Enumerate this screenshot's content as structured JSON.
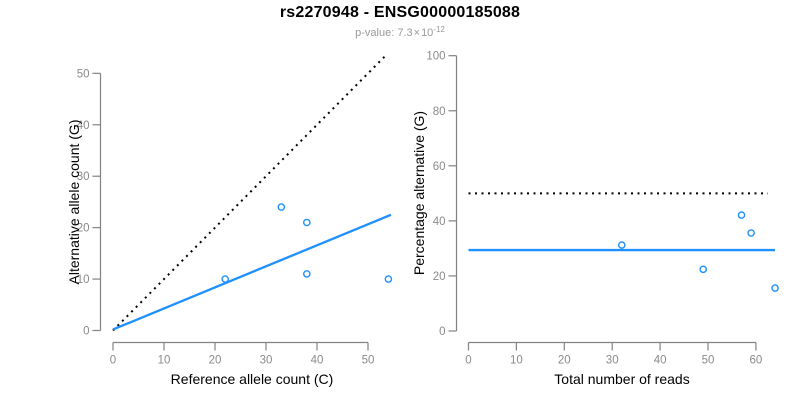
{
  "header": {
    "title": "rs2270948 - ENSG00000185088",
    "subtitle_prefix": "p-value: ",
    "subtitle_value": "7.3",
    "subtitle_times": "×",
    "subtitle_base": "10",
    "subtitle_exponent": "-12"
  },
  "colors": {
    "accent_blue": "#1E90FF",
    "line_black": "#000000",
    "axis_gray": "#828282",
    "tick_text_gray": "#8a8a8a",
    "subtitle_gray": "#999999"
  },
  "chart_data": [
    {
      "type": "scatter",
      "panel": "left",
      "xlabel": "Reference allele count (C)",
      "ylabel": "Alternative allele count (G)",
      "xlim": [
        0,
        54.5
      ],
      "ylim": [
        0,
        53.6
      ],
      "xticks": [
        0,
        10,
        20,
        30,
        40,
        50
      ],
      "yticks": [
        0,
        10,
        20,
        30,
        40,
        50
      ],
      "grid": false,
      "legend": null,
      "point_style": "open-circle",
      "point_color": "#1E90FF",
      "points": [
        {
          "x": 22,
          "y": 10
        },
        {
          "x": 33,
          "y": 24
        },
        {
          "x": 38,
          "y": 21
        },
        {
          "x": 38,
          "y": 11
        },
        {
          "x": 54,
          "y": 10
        }
      ],
      "lines": [
        {
          "name": "identity-line",
          "style": "dotted",
          "color": "#000000",
          "x1": 0,
          "y1": 0,
          "x2": 53.6,
          "y2": 53.6
        },
        {
          "name": "regression-line",
          "style": "solid",
          "color": "#1E90FF",
          "x1": 0,
          "y1": 0.2,
          "x2": 54.5,
          "y2": 22.5
        }
      ]
    },
    {
      "type": "scatter",
      "panel": "right",
      "xlabel": "Total number of reads",
      "ylabel": "Percentage alternative (G)",
      "xlim": [
        0,
        64
      ],
      "ylim": [
        0,
        100
      ],
      "xticks": [
        0,
        10,
        20,
        30,
        40,
        50,
        60
      ],
      "yticks": [
        0,
        20,
        40,
        60,
        80,
        100
      ],
      "grid": false,
      "legend": null,
      "point_style": "open-circle",
      "point_color": "#1E90FF",
      "points": [
        {
          "x": 32,
          "y": 31.2
        },
        {
          "x": 49,
          "y": 22.4
        },
        {
          "x": 57,
          "y": 42.1
        },
        {
          "x": 59,
          "y": 35.6
        },
        {
          "x": 64,
          "y": 15.6
        }
      ],
      "lines": [
        {
          "name": "fifty-percent-line",
          "style": "dotted",
          "color": "#000000",
          "x1": 0,
          "y1": 50,
          "x2": 62.5,
          "y2": 50
        },
        {
          "name": "mean-percentage-line",
          "style": "solid",
          "color": "#1E90FF",
          "x1": 0,
          "y1": 29.4,
          "x2": 64,
          "y2": 29.4
        }
      ]
    }
  ]
}
